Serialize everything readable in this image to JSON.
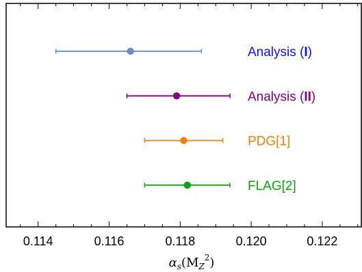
{
  "chart_data": {
    "type": "errorbar",
    "xlabel": {
      "alpha": "α",
      "sub_s": "s",
      "open": "(M",
      "sub_z": "Z",
      "sup_2": "2",
      "close": ")"
    },
    "xlim": [
      0.1131,
      0.1231
    ],
    "x_ticks": [
      {
        "value": 0.114,
        "label": "0.114"
      },
      {
        "value": 0.116,
        "label": "0.116"
      },
      {
        "value": 0.118,
        "label": "0.118"
      },
      {
        "value": 0.12,
        "label": "0.120"
      },
      {
        "value": 0.122,
        "label": "0.122"
      }
    ],
    "grid": false,
    "series": [
      {
        "name": "Analysis (I)",
        "label_parts": [
          "Analysis (",
          "I",
          ")"
        ],
        "value": 0.1166,
        "low": 0.1145,
        "high": 0.1186,
        "color": "#6a8cc0",
        "label_color": "#1010e0"
      },
      {
        "name": "Analysis (II)",
        "label_parts": [
          "Analysis (",
          "II",
          ")"
        ],
        "value": 0.1179,
        "low": 0.1165,
        "high": 0.1194,
        "color": "#800080",
        "label_color": "#800080"
      },
      {
        "name": "PDG[1]",
        "label_parts": [
          "PDG[1]"
        ],
        "value": 0.1181,
        "low": 0.117,
        "high": 0.1192,
        "color": "#f08010",
        "label_color": "#f08010"
      },
      {
        "name": "FLAG[2]",
        "label_parts": [
          "FLAG[2]"
        ],
        "value": 0.1182,
        "low": 0.117,
        "high": 0.1194,
        "color": "#10a010",
        "label_color": "#10a010"
      }
    ]
  }
}
